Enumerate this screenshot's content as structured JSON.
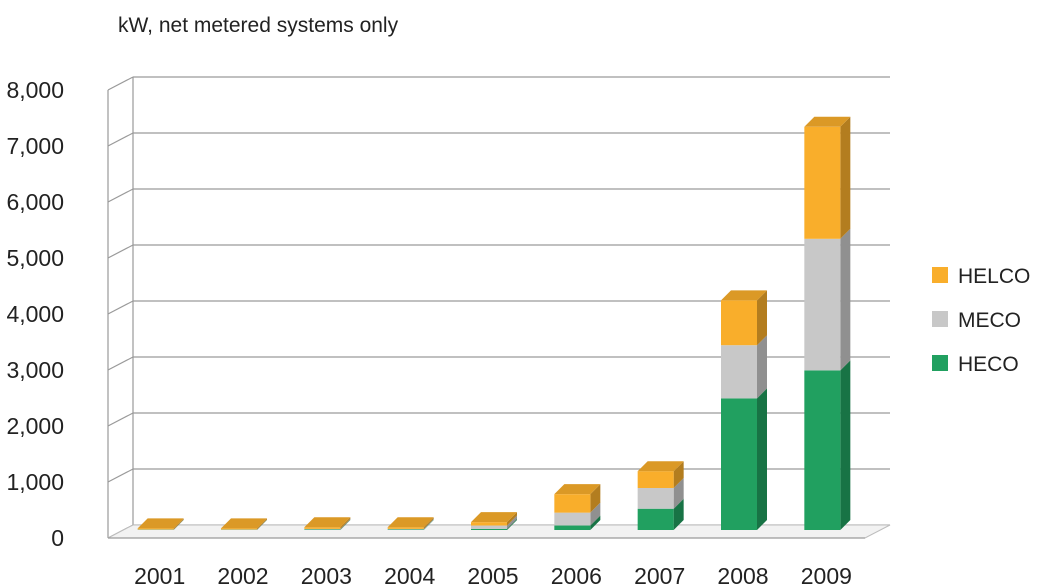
{
  "chart_data": {
    "type": "bar",
    "stacked": true,
    "three_d": true,
    "ylabel": "kW, net metered systems only",
    "categories": [
      "2001",
      "2002",
      "2003",
      "2004",
      "2005",
      "2006",
      "2007",
      "2008",
      "2009"
    ],
    "series": [
      {
        "name": "HECO",
        "color": "#21A060",
        "values": [
          5,
          5,
          10,
          10,
          20,
          80,
          380,
          2350,
          2850
        ]
      },
      {
        "name": "MECO",
        "color": "#C8C8C8",
        "values": [
          5,
          5,
          10,
          10,
          60,
          230,
          370,
          950,
          2350
        ]
      },
      {
        "name": "HELCO",
        "color": "#F9AE2B",
        "values": [
          20,
          20,
          30,
          30,
          60,
          330,
          300,
          800,
          2000
        ]
      }
    ],
    "ylim": [
      0,
      8000
    ],
    "yticks": [
      "0",
      "1,000",
      "2,000",
      "3,000",
      "4,000",
      "5,000",
      "6,000",
      "7,000",
      "8,000"
    ],
    "grid": true,
    "legend_position": "right"
  }
}
